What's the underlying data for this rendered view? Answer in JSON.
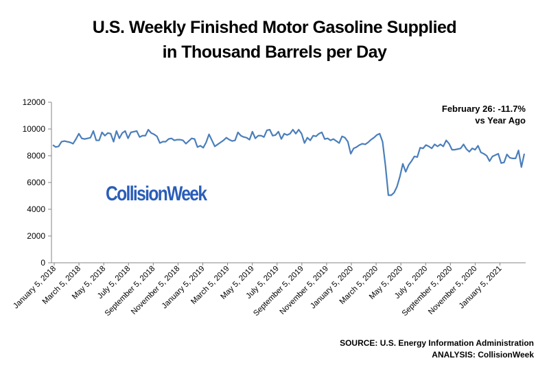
{
  "chart_data": {
    "type": "line",
    "title": "U.S. Weekly Finished Motor Gasoline Supplied",
    "subtitle": "in Thousand Barrels per Day",
    "xlabel": "",
    "ylabel": "",
    "ylim": [
      0,
      12000
    ],
    "yticks": [
      "0",
      "2000",
      "4000",
      "6000",
      "8000",
      "10000",
      "12000"
    ],
    "grid": false,
    "legend": "none",
    "color": "#4a7ebb",
    "x_tick_labels": [
      "January 5, 2018",
      "March 5, 2018",
      "May 5, 2018",
      "July 5, 2018",
      "September 5, 2018",
      "November 5, 2018",
      "January 5, 2019",
      "March 5, 2019",
      "May 5, 2019",
      "July 5, 2019",
      "September 5, 2019",
      "November 5, 2019",
      "January 5, 2020",
      "March 5, 2020",
      "May 5, 2020",
      "July 5, 2020",
      "September 5, 2020",
      "November 5, 2020",
      "January 5, 2021"
    ],
    "series": [
      {
        "values": [
          8800,
          8650,
          8700,
          9050,
          9100,
          9050,
          9000,
          8900,
          9250,
          9650,
          9300,
          9250,
          9300,
          9350,
          9850,
          9150,
          9150,
          9750,
          9500,
          9700,
          9650,
          9050,
          9850,
          9300,
          9700,
          9850,
          9300,
          9750,
          9800,
          9850,
          9400,
          9500,
          9500,
          9950,
          9700,
          9600,
          9450,
          8950,
          9050,
          9050,
          9250,
          9300,
          9150,
          9200,
          9200,
          9150,
          8900,
          9100,
          9300,
          9250,
          8650,
          8750,
          8600,
          9000,
          9600,
          9150,
          8700,
          8850,
          9000,
          9150,
          9350,
          9200,
          9100,
          9150,
          9750,
          9500,
          9400,
          9350,
          9200,
          9800,
          9300,
          9500,
          9500,
          9400,
          9900,
          9950,
          9500,
          9550,
          9800,
          9250,
          9650,
          9550,
          9650,
          9950,
          9650,
          9950,
          9650,
          8950,
          9350,
          9150,
          9500,
          9450,
          9650,
          9750,
          9250,
          9300,
          9150,
          9250,
          9100,
          8950,
          9450,
          9350,
          9050,
          8150,
          8550,
          8650,
          8800,
          8900,
          8850,
          9000,
          9200,
          9350,
          9550,
          9650,
          9050,
          7250,
          5050,
          5050,
          5250,
          5700,
          6450,
          7400,
          6800,
          7300,
          7600,
          7950,
          7900,
          8600,
          8550,
          8800,
          8700,
          8550,
          8850,
          8700,
          8850,
          8700,
          9150,
          8900,
          8450,
          8450,
          8500,
          8550,
          8850,
          8500,
          8300,
          8550,
          8450,
          8750,
          8250,
          8150,
          8000,
          7600,
          7950,
          8050,
          8150,
          7450,
          7500,
          8100,
          7850,
          7800,
          7800,
          8400,
          7150,
          8150
        ]
      }
    ],
    "annotation": [
      "February 26: -11.7%",
      "vs Year Ago"
    ]
  },
  "watermark": "CollisionWeek",
  "credits": {
    "source": "SOURCE: U.S. Energy Information Administration",
    "analysis": "ANALYSIS: CollisionWeek"
  }
}
